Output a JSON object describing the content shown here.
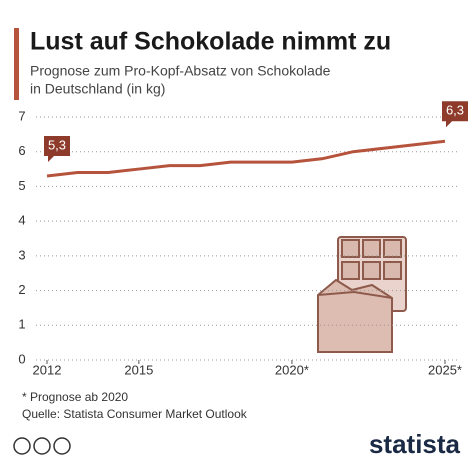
{
  "chart_data": {
    "type": "line",
    "title": "Lust auf Schokolade nimmt zu",
    "subtitle": [
      "Prognose zum Pro-Kopf-Absatz von Schokolade",
      "in Deutschland (in kg)"
    ],
    "x": [
      2012,
      2013,
      2014,
      2015,
      2016,
      2017,
      2018,
      2019,
      2020,
      2021,
      2022,
      2023,
      2024,
      2025
    ],
    "values": [
      5.3,
      5.4,
      5.4,
      5.5,
      5.6,
      5.6,
      5.7,
      5.7,
      5.7,
      5.8,
      6.0,
      6.1,
      6.2,
      6.3
    ],
    "value_labels": [
      "5,3",
      null,
      null,
      null,
      null,
      null,
      null,
      null,
      null,
      null,
      null,
      null,
      null,
      "6,3"
    ],
    "color": "#b5533c",
    "label_color": "#8e3b2b",
    "xlim": [
      2012,
      2025
    ],
    "xticks": [
      2012,
      2015,
      {
        "value": 2020,
        "label": "2020*"
      },
      {
        "value": 2025,
        "label": "2025*"
      }
    ],
    "ylim": [
      0,
      7
    ],
    "yticks": [
      0,
      1,
      2,
      3,
      4,
      5,
      6,
      7
    ],
    "grid": true,
    "notes": [
      "* Prognose ab 2020",
      "Quelle: Statista Consumer Market Outlook"
    ],
    "logo": "statista"
  }
}
